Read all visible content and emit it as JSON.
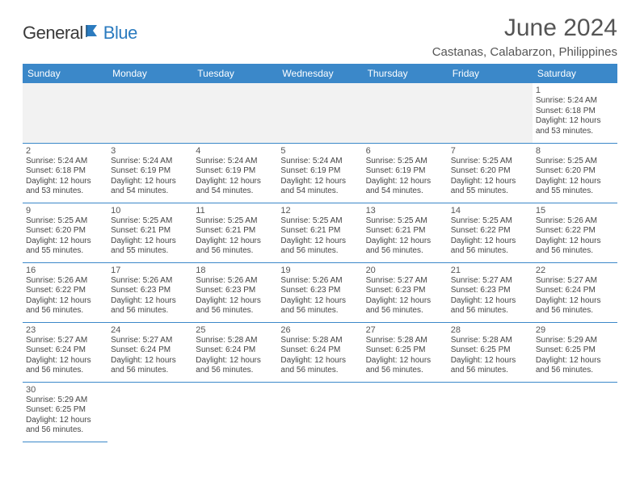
{
  "logo": {
    "general": "General",
    "blue": "Blue"
  },
  "title": "June 2024",
  "location": "Castanas, Calabarzon, Philippines",
  "colors": {
    "header_bg": "#3b88c9",
    "header_text": "#ffffff",
    "border": "#3b88c9",
    "text": "#444444",
    "title": "#555555",
    "empty_bg": "#f2f2f2"
  },
  "weekdays": [
    "Sunday",
    "Monday",
    "Tuesday",
    "Wednesday",
    "Thursday",
    "Friday",
    "Saturday"
  ],
  "weeks": [
    [
      null,
      null,
      null,
      null,
      null,
      null,
      {
        "n": "1",
        "sr": "5:24 AM",
        "ss": "6:18 PM",
        "dl": "12 hours and 53 minutes."
      }
    ],
    [
      {
        "n": "2",
        "sr": "5:24 AM",
        "ss": "6:18 PM",
        "dl": "12 hours and 53 minutes."
      },
      {
        "n": "3",
        "sr": "5:24 AM",
        "ss": "6:19 PM",
        "dl": "12 hours and 54 minutes."
      },
      {
        "n": "4",
        "sr": "5:24 AM",
        "ss": "6:19 PM",
        "dl": "12 hours and 54 minutes."
      },
      {
        "n": "5",
        "sr": "5:24 AM",
        "ss": "6:19 PM",
        "dl": "12 hours and 54 minutes."
      },
      {
        "n": "6",
        "sr": "5:25 AM",
        "ss": "6:19 PM",
        "dl": "12 hours and 54 minutes."
      },
      {
        "n": "7",
        "sr": "5:25 AM",
        "ss": "6:20 PM",
        "dl": "12 hours and 55 minutes."
      },
      {
        "n": "8",
        "sr": "5:25 AM",
        "ss": "6:20 PM",
        "dl": "12 hours and 55 minutes."
      }
    ],
    [
      {
        "n": "9",
        "sr": "5:25 AM",
        "ss": "6:20 PM",
        "dl": "12 hours and 55 minutes."
      },
      {
        "n": "10",
        "sr": "5:25 AM",
        "ss": "6:21 PM",
        "dl": "12 hours and 55 minutes."
      },
      {
        "n": "11",
        "sr": "5:25 AM",
        "ss": "6:21 PM",
        "dl": "12 hours and 56 minutes."
      },
      {
        "n": "12",
        "sr": "5:25 AM",
        "ss": "6:21 PM",
        "dl": "12 hours and 56 minutes."
      },
      {
        "n": "13",
        "sr": "5:25 AM",
        "ss": "6:21 PM",
        "dl": "12 hours and 56 minutes."
      },
      {
        "n": "14",
        "sr": "5:25 AM",
        "ss": "6:22 PM",
        "dl": "12 hours and 56 minutes."
      },
      {
        "n": "15",
        "sr": "5:26 AM",
        "ss": "6:22 PM",
        "dl": "12 hours and 56 minutes."
      }
    ],
    [
      {
        "n": "16",
        "sr": "5:26 AM",
        "ss": "6:22 PM",
        "dl": "12 hours and 56 minutes."
      },
      {
        "n": "17",
        "sr": "5:26 AM",
        "ss": "6:23 PM",
        "dl": "12 hours and 56 minutes."
      },
      {
        "n": "18",
        "sr": "5:26 AM",
        "ss": "6:23 PM",
        "dl": "12 hours and 56 minutes."
      },
      {
        "n": "19",
        "sr": "5:26 AM",
        "ss": "6:23 PM",
        "dl": "12 hours and 56 minutes."
      },
      {
        "n": "20",
        "sr": "5:27 AM",
        "ss": "6:23 PM",
        "dl": "12 hours and 56 minutes."
      },
      {
        "n": "21",
        "sr": "5:27 AM",
        "ss": "6:23 PM",
        "dl": "12 hours and 56 minutes."
      },
      {
        "n": "22",
        "sr": "5:27 AM",
        "ss": "6:24 PM",
        "dl": "12 hours and 56 minutes."
      }
    ],
    [
      {
        "n": "23",
        "sr": "5:27 AM",
        "ss": "6:24 PM",
        "dl": "12 hours and 56 minutes."
      },
      {
        "n": "24",
        "sr": "5:27 AM",
        "ss": "6:24 PM",
        "dl": "12 hours and 56 minutes."
      },
      {
        "n": "25",
        "sr": "5:28 AM",
        "ss": "6:24 PM",
        "dl": "12 hours and 56 minutes."
      },
      {
        "n": "26",
        "sr": "5:28 AM",
        "ss": "6:24 PM",
        "dl": "12 hours and 56 minutes."
      },
      {
        "n": "27",
        "sr": "5:28 AM",
        "ss": "6:25 PM",
        "dl": "12 hours and 56 minutes."
      },
      {
        "n": "28",
        "sr": "5:28 AM",
        "ss": "6:25 PM",
        "dl": "12 hours and 56 minutes."
      },
      {
        "n": "29",
        "sr": "5:29 AM",
        "ss": "6:25 PM",
        "dl": "12 hours and 56 minutes."
      }
    ],
    [
      {
        "n": "30",
        "sr": "5:29 AM",
        "ss": "6:25 PM",
        "dl": "12 hours and 56 minutes."
      },
      null,
      null,
      null,
      null,
      null,
      null
    ]
  ],
  "labels": {
    "sunrise": "Sunrise:",
    "sunset": "Sunset:",
    "daylight": "Daylight:"
  }
}
